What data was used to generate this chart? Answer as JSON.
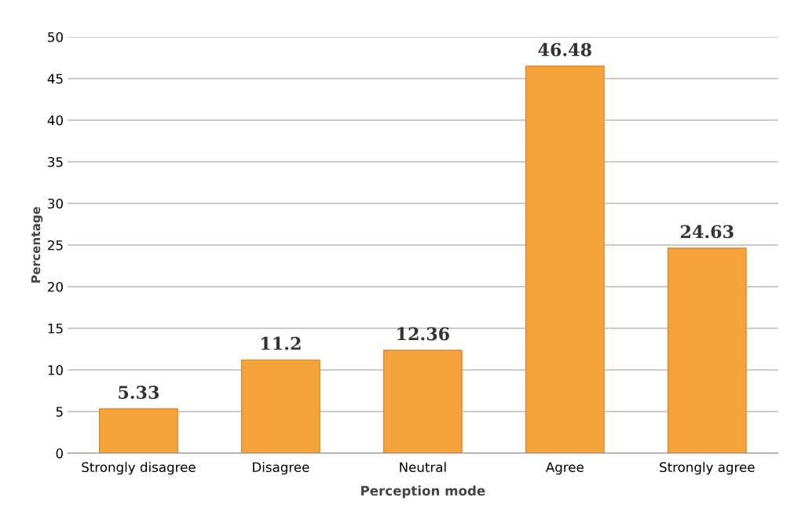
{
  "chart_data": {
    "type": "bar",
    "xlabel": "Perception mode",
    "ylabel": "Percentage",
    "categories": [
      "Strongly disagree",
      "Disagree",
      "Neutral",
      "Agree",
      "Strongly agree"
    ],
    "values": [
      5.33,
      11.2,
      12.36,
      46.48,
      24.63
    ],
    "color": "#f4a23c",
    "ylim": [
      0,
      50
    ],
    "yticks": [
      0,
      5,
      10,
      15,
      20,
      25,
      30,
      35,
      40,
      45,
      50
    ],
    "grid": "y",
    "data_labels": true
  }
}
